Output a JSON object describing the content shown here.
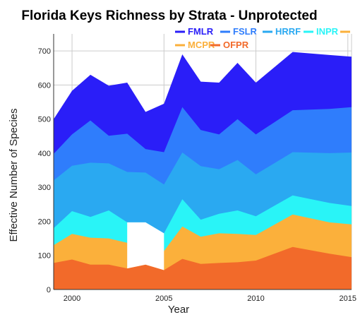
{
  "chart_data": {
    "type": "area",
    "title": "Florida Keys Richness by Strata - Unprotected",
    "xlabel": "Year",
    "ylabel": "Effective Number of Species",
    "xlim": [
      1999,
      2015.2
    ],
    "ylim": [
      0,
      750
    ],
    "xticks": [
      "2000",
      "2005",
      "2010",
      "2015"
    ],
    "yticks": [
      "0",
      "100",
      "200",
      "300",
      "400",
      "500",
      "600",
      "700"
    ],
    "grid": true,
    "legend_position": "top",
    "series": [
      {
        "name": "OFPR",
        "color": "#f26a2a",
        "points": [
          [
            1999,
            78
          ],
          [
            2000,
            88
          ],
          [
            2001,
            73
          ],
          [
            2002,
            73
          ],
          [
            2003,
            62
          ],
          [
            2004,
            73
          ],
          [
            2005,
            57
          ],
          [
            2006,
            90
          ],
          [
            2007,
            75
          ],
          [
            2008,
            78
          ],
          [
            2009,
            80
          ],
          [
            2010,
            85
          ],
          [
            2012,
            125
          ],
          [
            2014,
            105
          ],
          [
            2015.2,
            95
          ]
        ]
      },
      {
        "name": "MCPR",
        "color": "#fbb03b",
        "points": [
          [
            1999,
            130
          ],
          [
            2000,
            163
          ],
          [
            2001,
            152
          ],
          [
            2002,
            150
          ],
          [
            2003,
            137
          ],
          [
            2005,
            113
          ],
          [
            2006,
            185
          ],
          [
            2007,
            155
          ],
          [
            2008,
            165
          ],
          [
            2009,
            163
          ],
          [
            2010,
            160
          ],
          [
            2012,
            220
          ],
          [
            2014,
            197
          ],
          [
            2015.2,
            191
          ]
        ]
      },
      {
        "name": "INPR",
        "color": "#29f4f7",
        "points": [
          [
            1999,
            180
          ],
          [
            2000,
            230
          ],
          [
            2001,
            213
          ],
          [
            2002,
            232
          ],
          [
            2003,
            197
          ],
          [
            2004,
            197
          ],
          [
            2005,
            165
          ],
          [
            2006,
            265
          ],
          [
            2007,
            205
          ],
          [
            2008,
            222
          ],
          [
            2009,
            232
          ],
          [
            2010,
            215
          ],
          [
            2012,
            276
          ],
          [
            2014,
            254
          ],
          [
            2015.2,
            245
          ]
        ]
      },
      {
        "name": "HRRF",
        "color": "#2aa9f1",
        "points": [
          [
            1999,
            320
          ],
          [
            2000,
            363
          ],
          [
            2001,
            372
          ],
          [
            2002,
            370
          ],
          [
            2003,
            345
          ],
          [
            2004,
            343
          ],
          [
            2005,
            308
          ],
          [
            2006,
            402
          ],
          [
            2007,
            362
          ],
          [
            2008,
            353
          ],
          [
            2009,
            380
          ],
          [
            2010,
            338
          ],
          [
            2012,
            403
          ],
          [
            2014,
            400
          ],
          [
            2015.2,
            402
          ]
        ]
      },
      {
        "name": "FSLR",
        "color": "#2f7dfc",
        "points": [
          [
            1999,
            398
          ],
          [
            2000,
            455
          ],
          [
            2001,
            496
          ],
          [
            2002,
            451
          ],
          [
            2003,
            457
          ],
          [
            2004,
            412
          ],
          [
            2005,
            403
          ],
          [
            2006,
            535
          ],
          [
            2007,
            468
          ],
          [
            2008,
            455
          ],
          [
            2009,
            500
          ],
          [
            2010,
            455
          ],
          [
            2012,
            526
          ],
          [
            2014,
            530
          ],
          [
            2015.2,
            535
          ]
        ]
      },
      {
        "name": "FMLR",
        "color": "#2a1ef8",
        "points": [
          [
            1999,
            500
          ],
          [
            2000,
            583
          ],
          [
            2001,
            630
          ],
          [
            2002,
            598
          ],
          [
            2003,
            607
          ],
          [
            2004,
            521
          ],
          [
            2005,
            545
          ],
          [
            2006,
            690
          ],
          [
            2007,
            610
          ],
          [
            2008,
            607
          ],
          [
            2009,
            665
          ],
          [
            2010,
            607
          ],
          [
            2012,
            697
          ],
          [
            2014,
            688
          ],
          [
            2015.2,
            683
          ]
        ]
      }
    ],
    "missing_segments": [
      {
        "series": "MCPR",
        "from": 2003,
        "to": 2005
      }
    ]
  }
}
